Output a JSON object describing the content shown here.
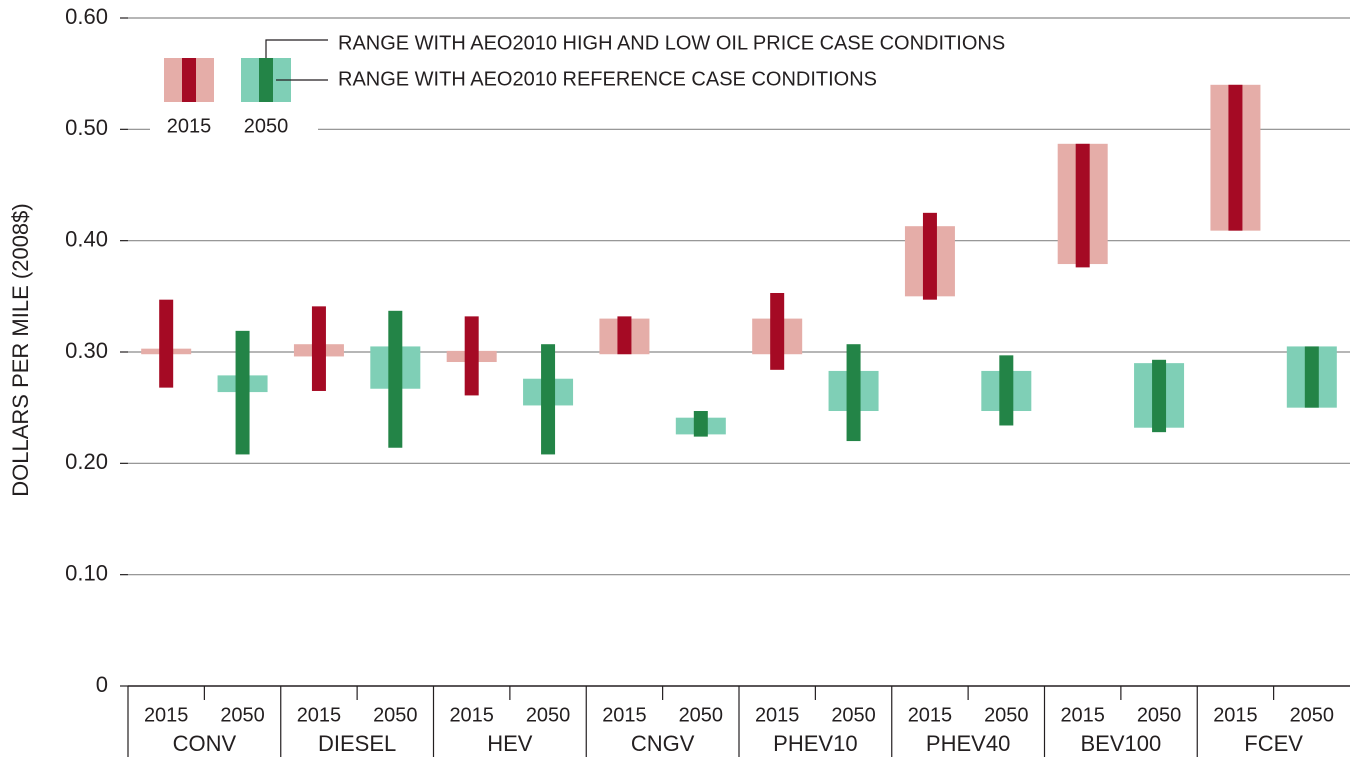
{
  "chart_data": {
    "type": "range_bar",
    "y_axis_label": "DOLLARS PER MILE (2008$)",
    "categories": [
      "CONV",
      "DIESEL",
      "HEV",
      "CNGV",
      "PHEV10",
      "PHEV40",
      "BEV100",
      "FCEV"
    ],
    "series": [
      {
        "name": "2015",
        "reference_color": "#e5ada8",
        "oil_color": "#a50a24",
        "reference_low": [
          0.298,
          0.296,
          0.291,
          0.298,
          0.298,
          0.35,
          0.379,
          0.409
        ],
        "reference_high": [
          0.303,
          0.307,
          0.301,
          0.33,
          0.33,
          0.413,
          0.487,
          0.54
        ],
        "oil_low": [
          0.268,
          0.265,
          0.261,
          0.298,
          0.284,
          0.347,
          0.376,
          0.409
        ],
        "oil_high": [
          0.347,
          0.341,
          0.332,
          0.332,
          0.353,
          0.425,
          0.487,
          0.54
        ]
      },
      {
        "name": "2050",
        "reference_color": "#7fcfb6",
        "oil_color": "#238447",
        "reference_low": [
          0.264,
          0.267,
          0.252,
          0.226,
          0.247,
          0.247,
          0.232,
          0.25
        ],
        "reference_high": [
          0.279,
          0.305,
          0.276,
          0.241,
          0.283,
          0.283,
          0.29,
          0.305
        ],
        "oil_low": [
          0.208,
          0.214,
          0.208,
          0.224,
          0.22,
          0.234,
          0.228,
          0.25
        ],
        "oil_high": [
          0.319,
          0.337,
          0.307,
          0.247,
          0.307,
          0.297,
          0.293,
          0.305
        ]
      }
    ],
    "annotations": {
      "oil_range": "RANGE WITH AEO2010 HIGH AND LOW OIL PRICE CASE CONDITIONS",
      "reference_range": "RANGE WITH AEO2010 REFERENCE CASE CONDITIONS"
    },
    "ylim": [
      0,
      0.6
    ],
    "yticks": [
      0,
      {
        "value": 0.1,
        "label": "0.10"
      },
      {
        "value": 0.2,
        "label": "0.20"
      },
      {
        "value": 0.3,
        "label": "0.30"
      },
      {
        "value": 0.4,
        "label": "0.40"
      },
      {
        "value": 0.5,
        "label": "0.50"
      },
      {
        "value": 0.6,
        "label": "0.60"
      }
    ],
    "grid": true
  }
}
